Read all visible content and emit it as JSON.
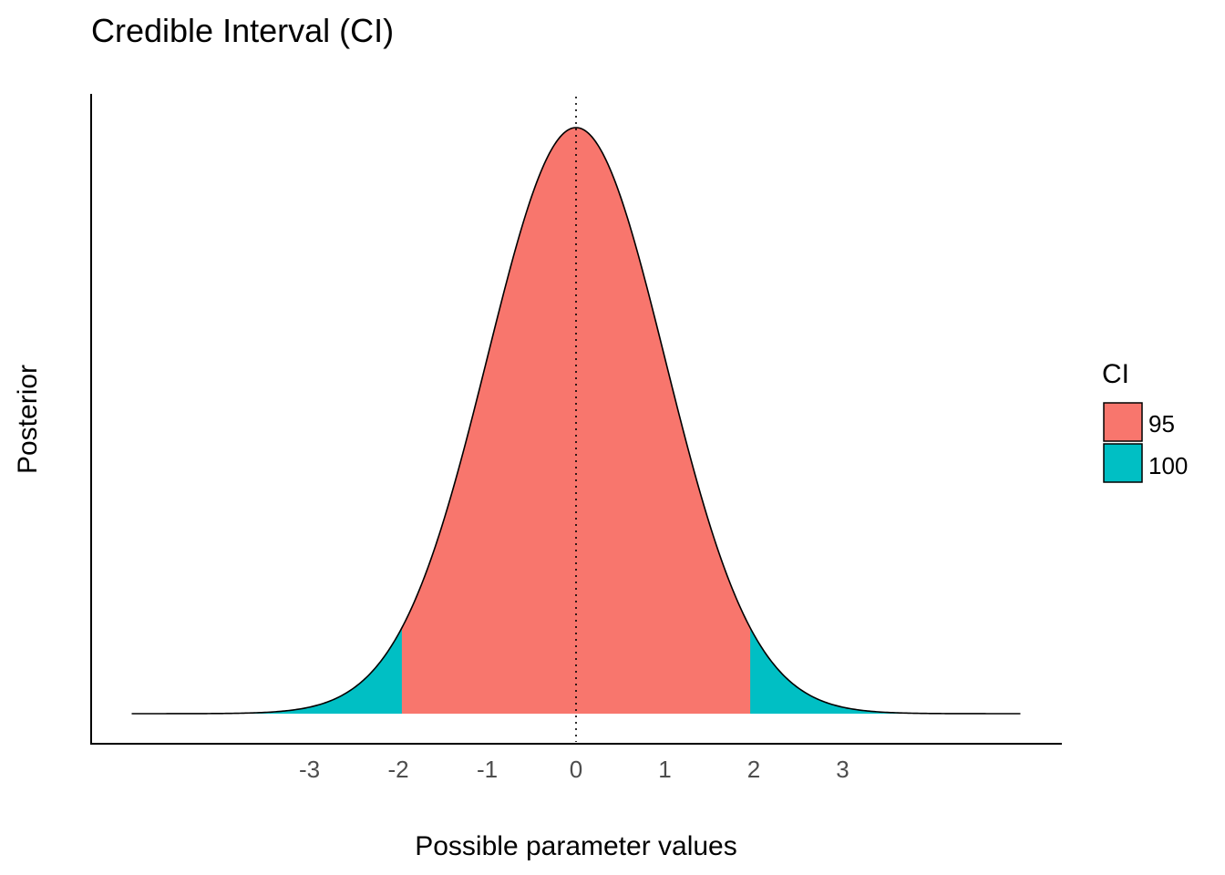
{
  "chart_data": {
    "type": "area",
    "title": "Credible Interval (CI)",
    "xlabel": "Possible parameter values",
    "ylabel": "Posterior",
    "xlim": [
      -5,
      5
    ],
    "x_ticks": [
      -3,
      -2,
      -1,
      0,
      1,
      2,
      3
    ],
    "x_tick_labels": [
      "-3",
      "-2",
      "-1",
      "0",
      "1",
      "2",
      "3"
    ],
    "distribution": "normal",
    "mean": 0,
    "sd": 1,
    "reference_line_x": 0,
    "series": [
      {
        "name": "95",
        "range": [
          -1.96,
          1.96
        ],
        "color": "#F8766D"
      },
      {
        "name": "100",
        "range": [
          -5,
          5
        ],
        "color": "#00BFC4"
      }
    ],
    "legend": {
      "title": "CI",
      "position": "right",
      "entries": [
        "95",
        "100"
      ]
    },
    "grid": false
  }
}
